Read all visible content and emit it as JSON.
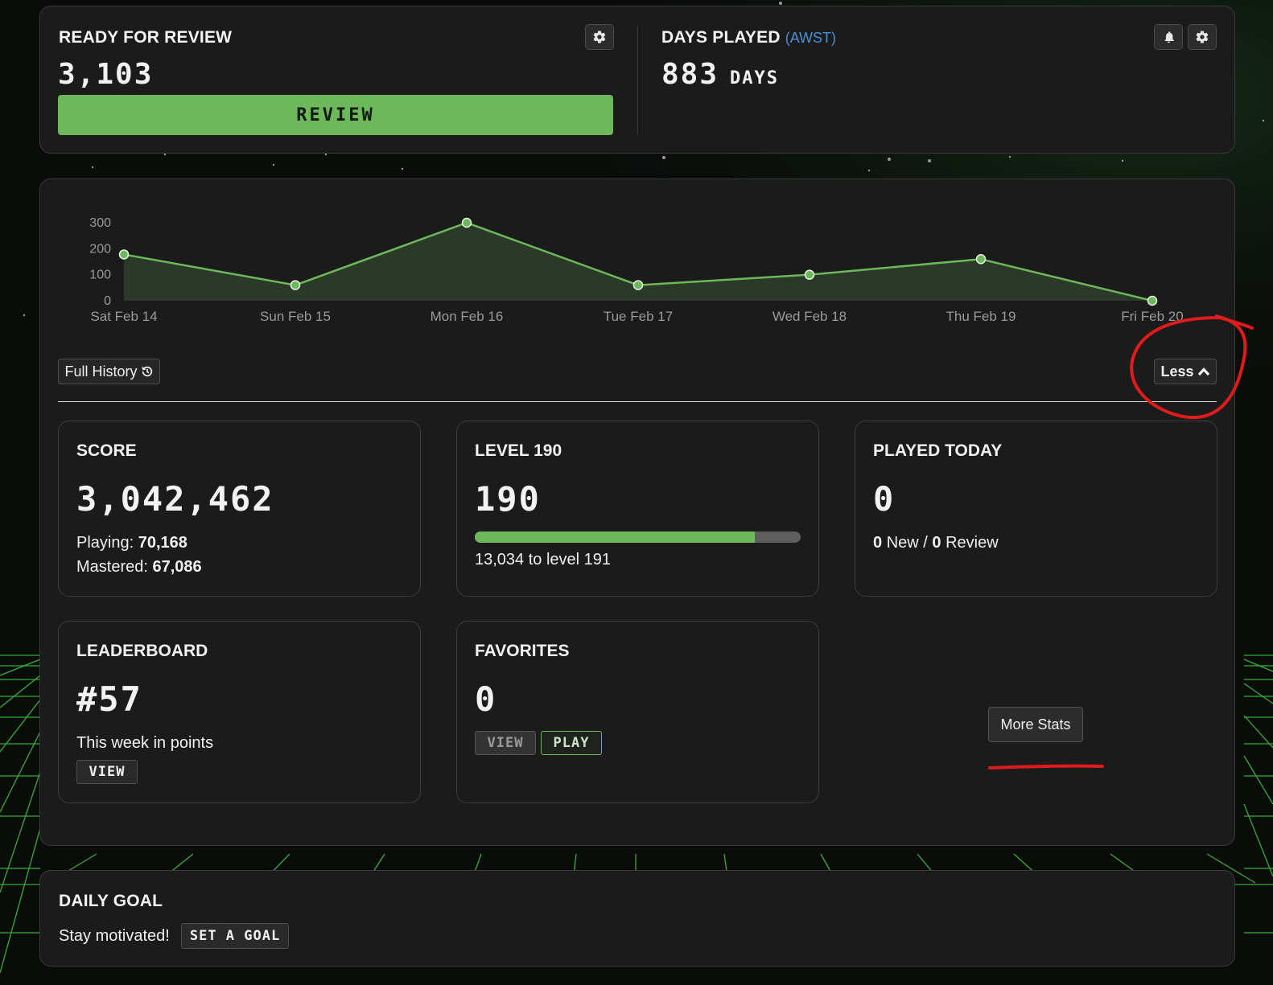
{
  "review": {
    "title": "READY FOR REVIEW",
    "count": "3,103",
    "button_label": "REVIEW"
  },
  "days_played": {
    "title": "DAYS PLAYED",
    "timezone": "(AWST)",
    "count": "883",
    "unit": "DAYS"
  },
  "chart_data": {
    "type": "line",
    "x": [
      "Sat Feb 14",
      "Sun Feb 15",
      "Mon Feb 16",
      "Tue Feb 17",
      "Wed Feb 18",
      "Thu Feb 19",
      "Fri Feb 20"
    ],
    "series": [
      {
        "values": [
          178,
          60,
          300,
          60,
          100,
          160,
          0
        ]
      }
    ],
    "yticks": [
      "300",
      "200",
      "100",
      "0"
    ],
    "ylim": [
      0,
      300
    ],
    "line_color": "#6cb85a",
    "fill_color": "#2b3a28",
    "grid": false
  },
  "history": {
    "full_history_label": "Full History",
    "less_label": "Less"
  },
  "score": {
    "title": "SCORE",
    "value": "3,042,462",
    "playing_label": "Playing:",
    "playing_value": "70,168",
    "mastered_label": "Mastered:",
    "mastered_value": "67,086"
  },
  "level": {
    "title": "LEVEL 190",
    "value": "190",
    "progress": 0.86,
    "to_next": "13,034 to level 191"
  },
  "played_today": {
    "title": "PLAYED TODAY",
    "value": "0",
    "new_count": "0",
    "new_label": "New /",
    "review_count": "0",
    "review_label": "Review"
  },
  "leaderboard": {
    "title": "LEADERBOARD",
    "rank": "#57",
    "subtitle": "This week in points",
    "view_label": "VIEW"
  },
  "favorites": {
    "title": "FAVORITES",
    "value": "0",
    "view_label": "VIEW",
    "play_label": "PLAY"
  },
  "more_stats": {
    "label": "More Stats"
  },
  "daily_goal": {
    "title": "DAILY GOAL",
    "text": "Stay motivated!",
    "button_label": "SET A GOAL"
  },
  "colors": {
    "accent_green": "#6cb85a",
    "timezone_blue": "#4a90d9",
    "annotation_red": "#e01b1b"
  }
}
